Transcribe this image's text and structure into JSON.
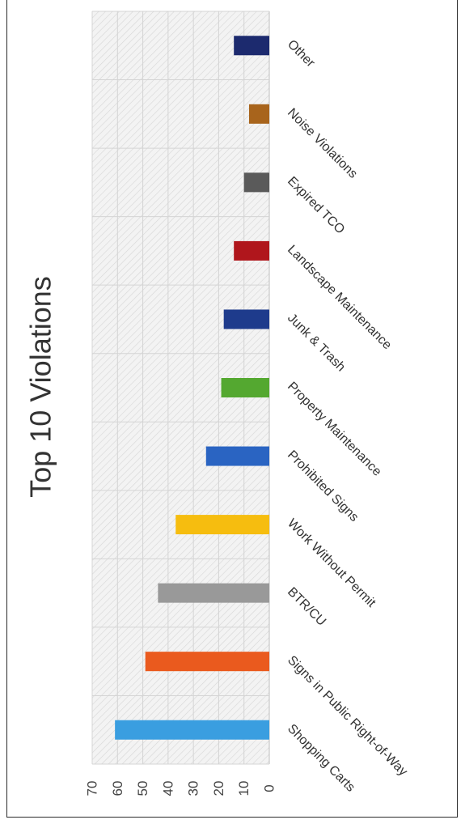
{
  "chart_data": {
    "type": "bar",
    "orientation": "vertical, page rotated 90° clockwise",
    "title": "Top 10 Violations",
    "xlabel": "",
    "ylabel": "",
    "categories": [
      "Shopping Carts",
      "Signs in Public Right-of-Way",
      "BTR/CU",
      "Work Without Permit",
      "Prohibited Signs",
      "Property Maintenance",
      "Junk & Trash",
      "Landscape Maintenance",
      "Expired TCO",
      "Noise Violations",
      "Other"
    ],
    "values": [
      61,
      49,
      44,
      37,
      25,
      19,
      18,
      14,
      10,
      8,
      14
    ],
    "colors": [
      "#3a9ee0",
      "#ea5a1e",
      "#999999",
      "#f6bd0f",
      "#2a64c2",
      "#54a830",
      "#1e3b8c",
      "#b0161c",
      "#5a5a5a",
      "#a8641c",
      "#1c2a6e"
    ],
    "ylim": [
      0,
      70
    ],
    "yticks": [
      0,
      10,
      20,
      30,
      40,
      50,
      60,
      70
    ],
    "grid": true,
    "legend": "none"
  }
}
